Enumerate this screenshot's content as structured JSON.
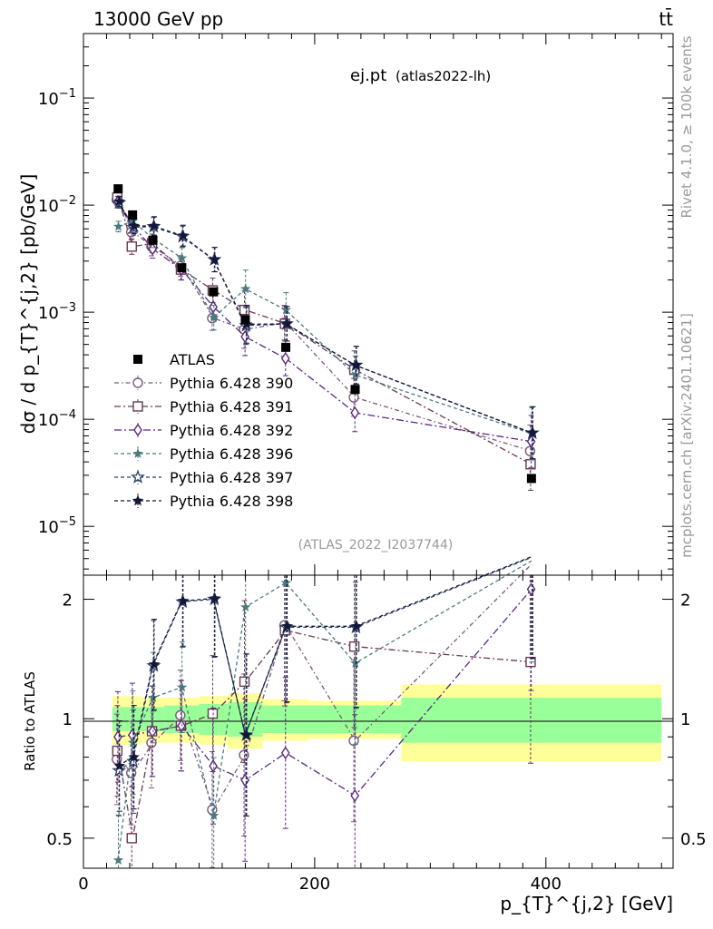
{
  "header": {
    "energy_label": "13000 GeV pp",
    "process_label": "tt̄",
    "plot_title": "ej.pt",
    "plot_subtitle": "(atlas2022-lh)",
    "analysis_id": "(ATLAS_2022_I2037744)",
    "side_rivet": "Rivet 4.1.0, ≥ 100k events",
    "side_mcplots": "mcplots.cern.ch [arXiv:2401.10621]"
  },
  "axes": {
    "main_ylabel": "dσ / d p_{T}^{j,2} [pb/GeV]",
    "ratio_ylabel": "Ratio to ATLAS",
    "xlabel": "p_{T}^{j,2} [GeV]",
    "x_ticks": [
      "0",
      "200",
      "400"
    ],
    "main_y_ticks": [
      {
        "base": "10",
        "exp": "−1"
      },
      {
        "base": "10",
        "exp": "−2"
      },
      {
        "base": "10",
        "exp": "−3"
      },
      {
        "base": "10",
        "exp": "−4"
      },
      {
        "base": "10",
        "exp": "−5"
      }
    ],
    "ratio_y_ticks": [
      "2",
      "1",
      "0.5"
    ]
  },
  "chart_data": {
    "type": "scatter",
    "xlim": [
      0,
      510
    ],
    "ylim": [
      3.5e-06,
      0.4
    ],
    "ratio_ylim": [
      0.42,
      2.3
    ],
    "yscale": "log",
    "legend_position": "middle-left",
    "bins": [
      {
        "lo": 25,
        "hi": 35
      },
      {
        "lo": 35,
        "hi": 50
      },
      {
        "lo": 50,
        "hi": 70
      },
      {
        "lo": 70,
        "hi": 100
      },
      {
        "lo": 100,
        "hi": 125
      },
      {
        "lo": 125,
        "hi": 155
      },
      {
        "lo": 155,
        "hi": 195
      },
      {
        "lo": 195,
        "hi": 275
      },
      {
        "lo": 275,
        "hi": 500
      }
    ],
    "x": [
      30,
      42.5,
      60,
      85,
      112.5,
      140,
      175,
      235,
      387.5
    ],
    "reference": {
      "name": "ATLAS",
      "values": [
        0.0142,
        0.0081,
        0.0047,
        0.0026,
        0.00155,
        0.00085,
        0.00047,
        0.00019,
        2.8e-05
      ],
      "band_inner": [
        0.07,
        0.07,
        0.07,
        0.08,
        0.09,
        0.1,
        0.08,
        0.08,
        0.13
      ],
      "band_outer": [
        0.14,
        0.14,
        0.13,
        0.13,
        0.14,
        0.16,
        0.12,
        0.11,
        0.22
      ]
    },
    "series": [
      {
        "name": "Pythia 6.428 390",
        "color": "#7a5878",
        "marker": "open-circle",
        "dash": "5 3 1.5 3",
        "values": [
          0.0112,
          0.0056,
          0.0041,
          0.0027,
          0.00088,
          0.00069,
          0.0008,
          0.00016,
          5.05e-05
        ],
        "ratio": [
          0.79,
          0.73,
          0.87,
          1.02,
          0.59,
          0.81,
          1.72,
          0.88,
          2.45
        ]
      },
      {
        "name": "Pythia 6.428 391",
        "color": "#6a3a52",
        "marker": "open-square",
        "dash": "7 3 2 3",
        "values": [
          0.0118,
          0.0041,
          0.0044,
          0.0025,
          0.0016,
          0.00105,
          0.00078,
          0.00029,
          3.8e-05
        ],
        "ratio": [
          0.83,
          0.5,
          0.93,
          0.96,
          1.03,
          1.24,
          1.67,
          1.52,
          1.39
        ]
      },
      {
        "name": "Pythia 6.428 392",
        "color": "#5a2880",
        "marker": "open-diamond",
        "dash": "8 3 2 3",
        "values": [
          0.0108,
          0.0065,
          0.0039,
          0.0025,
          0.00112,
          0.00059,
          0.00037,
          0.000115,
          6.2e-05
        ],
        "ratio": [
          0.9,
          0.91,
          0.93,
          0.96,
          0.76,
          0.7,
          0.82,
          0.64,
          2.12
        ]
      },
      {
        "name": "Pythia 6.428 396",
        "color": "#4a7a7c",
        "marker": "star",
        "dash": "4 3",
        "values": [
          0.0063,
          0.0071,
          0.0049,
          0.0032,
          0.00089,
          0.00165,
          0.00105,
          0.00026,
          7.35e-05
        ],
        "ratio": [
          0.44,
          0.87,
          1.13,
          1.2,
          0.57,
          1.91,
          2.2,
          1.38,
          2.5
        ]
      },
      {
        "name": "Pythia 6.428 397",
        "color": "#2c3e6a",
        "marker": "open-star",
        "dash": "4 3",
        "values": [
          0.0105,
          0.0062,
          0.0063,
          0.0051,
          0.0031,
          0.00075,
          0.00078,
          0.00032,
          7.45e-05
        ],
        "ratio": [
          0.74,
          0.78,
          1.36,
          1.97,
          2.0,
          0.91,
          1.7,
          1.7,
          2.55
        ]
      },
      {
        "name": "Pythia 6.428 398",
        "color": "#141838",
        "marker": "triangle-down",
        "dash": "4 3",
        "values": [
          0.0108,
          0.0064,
          0.0064,
          0.0052,
          0.0031,
          0.00077,
          0.00078,
          0.00032,
          7.5e-05
        ],
        "ratio": [
          0.76,
          0.8,
          1.37,
          1.98,
          2.01,
          0.91,
          1.71,
          1.71,
          2.56
        ]
      }
    ],
    "errors_main": [
      0.12,
      0.18,
      0.22,
      0.25,
      0.3,
      0.5,
      0.45,
      0.5,
      0.75
    ],
    "errors_ratio": [
      0.3,
      0.35,
      0.3,
      0.3,
      0.4,
      0.6,
      0.55,
      0.6,
      0.8
    ]
  }
}
